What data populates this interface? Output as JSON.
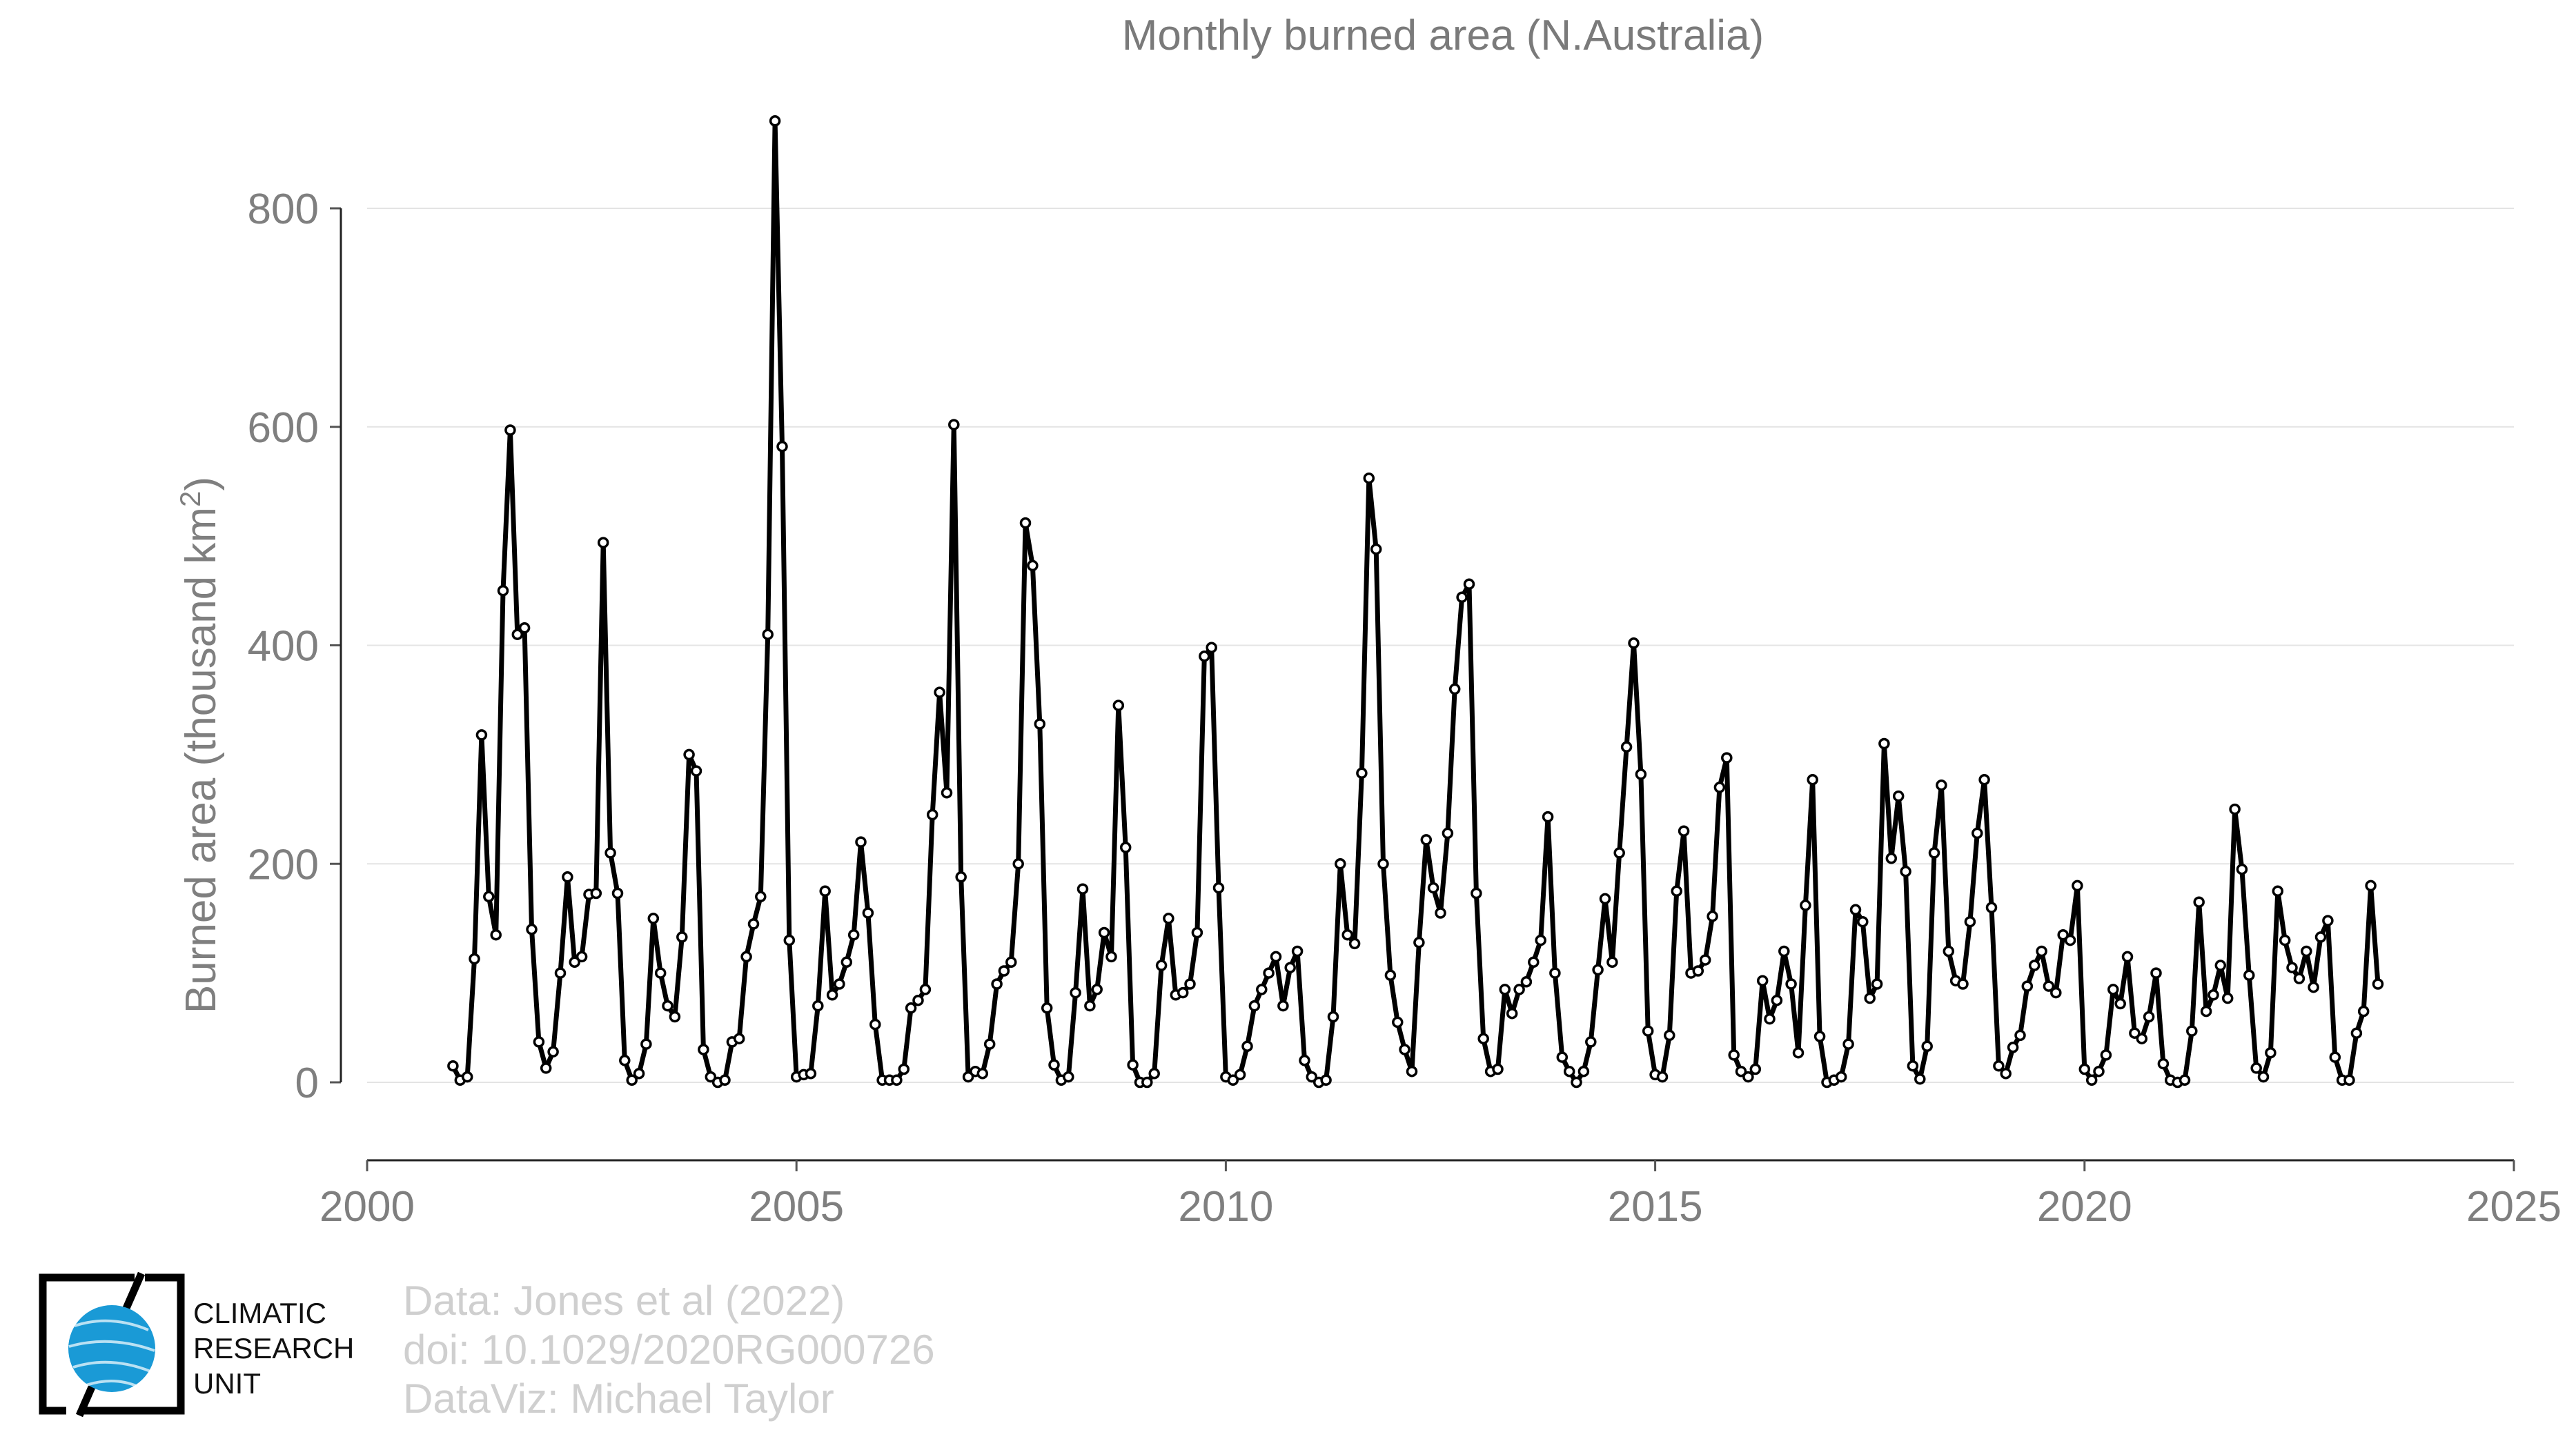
{
  "chart_data": {
    "type": "line",
    "title": "Monthly burned area (N.Australia)",
    "ylabel_main": "Burned area (thousand km",
    "ylabel_sup": "2",
    "ylabel_close": ")",
    "xlabel": "",
    "xlim": [
      2000,
      2025
    ],
    "ylim": [
      -70,
      880
    ],
    "xticks": [
      2000,
      2005,
      2010,
      2015,
      2020,
      2025
    ],
    "yticks": [
      0,
      200,
      400,
      600,
      800
    ],
    "grid": true,
    "start_year": 2001,
    "start_month": 1,
    "series": [
      {
        "values": [
          15,
          2,
          5,
          113,
          318,
          170,
          135,
          450,
          597,
          410,
          416,
          140,
          37,
          13,
          28,
          100,
          188,
          110,
          115,
          172,
          173,
          494,
          210,
          173,
          20,
          2,
          8,
          35,
          150,
          100,
          70,
          60,
          133,
          300,
          285,
          30,
          5,
          0,
          2,
          37,
          40,
          115,
          145,
          170,
          410,
          880,
          582,
          130,
          5,
          7,
          8,
          70,
          175,
          80,
          90,
          110,
          135,
          220,
          155,
          53,
          2,
          2,
          2,
          12,
          68,
          75,
          85,
          245,
          357,
          265,
          602,
          188,
          5,
          10,
          8,
          35,
          90,
          102,
          110,
          200,
          512,
          473,
          328,
          68,
          16,
          2,
          5,
          82,
          177,
          70,
          85,
          137,
          115,
          345,
          215,
          16,
          0,
          0,
          8,
          107,
          150,
          80,
          82,
          90,
          137,
          390,
          398,
          178,
          5,
          2,
          7,
          33,
          70,
          85,
          100,
          115,
          70,
          105,
          120,
          20,
          5,
          0,
          2,
          60,
          200,
          135,
          127,
          283,
          553,
          488,
          200,
          98,
          55,
          30,
          10,
          128,
          222,
          178,
          155,
          228,
          360,
          444,
          456,
          173,
          40,
          10,
          12,
          85,
          63,
          85,
          92,
          110,
          130,
          243,
          100,
          23,
          10,
          0,
          10,
          37,
          103,
          168,
          110,
          210,
          307,
          402,
          282,
          47,
          7,
          5,
          43,
          175,
          230,
          100,
          102,
          112,
          152,
          270,
          297,
          25,
          10,
          5,
          12,
          93,
          58,
          75,
          120,
          90,
          27,
          162,
          277,
          42,
          0,
          2,
          5,
          35,
          158,
          147,
          77,
          90,
          310,
          205,
          262,
          193,
          15,
          3,
          33,
          210,
          272,
          120,
          93,
          90,
          147,
          228,
          277,
          160,
          15,
          8,
          32,
          43,
          88,
          107,
          120,
          88,
          82,
          135,
          130,
          180,
          12,
          2,
          10,
          25,
          85,
          72,
          115,
          45,
          40,
          60,
          100,
          17,
          2,
          0,
          2,
          47,
          165,
          65,
          80,
          107,
          77,
          250,
          195,
          98,
          13,
          5,
          27,
          175,
          130,
          105,
          95,
          120,
          87,
          133,
          148,
          23,
          2,
          2,
          45,
          65,
          180,
          90
        ]
      }
    ]
  },
  "credits": {
    "line1": "Data: Jones et al (2022)",
    "line2": "doi: 10.1029/2020RG000726",
    "line3": "DataViz: Michael Taylor"
  },
  "logo": {
    "line1": "CLIMATIC",
    "line2": "RESEARCH",
    "line3": "UNIT",
    "globe_color": "#1a9ad6"
  }
}
